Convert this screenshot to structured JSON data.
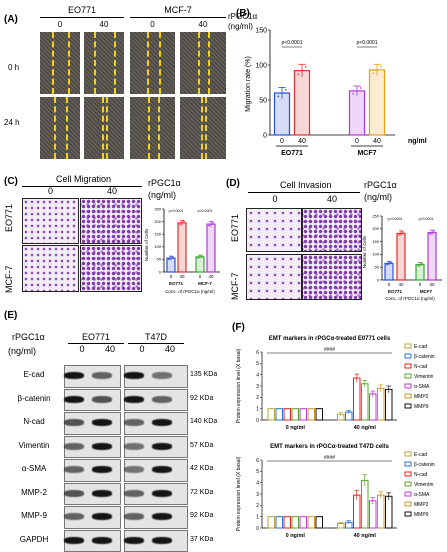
{
  "panels": {
    "A": {
      "label": "(A)",
      "lines": [
        "EO771",
        "MCF-7"
      ],
      "doses": [
        "0",
        "40",
        "0",
        "40"
      ],
      "times": [
        "0 h",
        "24 h"
      ],
      "agent": "rPGC1α",
      "unit": "(ng/ml)"
    },
    "B": {
      "label": "(B)",
      "ylabel": "Migration rate (%)",
      "xunit": "ng/ml",
      "pvals": [
        "p<0.0001",
        "p<0.0001"
      ],
      "doses": [
        "0",
        "40",
        "0",
        "40"
      ],
      "lines": [
        "EO771",
        "MCF7"
      ]
    },
    "C": {
      "label": "(C)",
      "title": "Cell Migration",
      "agent": "rPGC1α",
      "unit": "(ng/ml)",
      "doses": [
        "0",
        "40"
      ],
      "lines": [
        "EO771",
        "MCF-7"
      ],
      "chart": {
        "ylabel": "Number of Cells",
        "xlabel": "Conc. of rPGC1α (ng/ml)",
        "doses": [
          "0",
          "40",
          "0",
          "40"
        ],
        "groups": [
          "EO771",
          "MCF-7"
        ],
        "pvals": [
          "p<0.0001",
          "p<0.0001"
        ]
      }
    },
    "D": {
      "label": "(D)",
      "title": "Cell Invasion",
      "agent": "rPGC1α",
      "unit": "(ng/ml)",
      "doses": [
        "0",
        "40"
      ],
      "lines": [
        "EO771",
        "MCF-7"
      ],
      "chart": {
        "ylabel": "Number of Cells",
        "xlabel": "Conc. of rPGC1α (ng/ml)",
        "doses": [
          "0",
          "40",
          "0",
          "40"
        ],
        "groups": [
          "EO771",
          "MCF7"
        ],
        "pvals": [
          "p<0.0001",
          "p<0.0001"
        ]
      }
    },
    "E": {
      "label": "(E)",
      "agent": "rPGC1α",
      "unit": "(ng/ml)",
      "lines": [
        "EO771",
        "T47D"
      ],
      "doses": [
        "0",
        "40",
        "0",
        "40"
      ],
      "proteins": [
        {
          "name": "E-cad",
          "size": "135 KDa"
        },
        {
          "name": "β-catenin",
          "size": "92 KDa"
        },
        {
          "name": "N-cad",
          "size": "140 KDa"
        },
        {
          "name": "Vimentin",
          "size": "57 KDa"
        },
        {
          "name": "α-SMA",
          "size": "42 KDa"
        },
        {
          "name": "MMP-2",
          "size": "72 KDa"
        },
        {
          "name": "MMP-9",
          "size": "92 KDa"
        },
        {
          "name": "GAPDH",
          "size": "37 KDa"
        }
      ]
    },
    "F": {
      "label": "(F)",
      "legend": [
        "E-cad",
        "β-catenin",
        "N-cad",
        "Vimentin",
        "α-SMA",
        "MMP2",
        "MMP9"
      ],
      "colors": [
        "#b8a23a",
        "#2c6fd6",
        "#e0211b",
        "#5aa02c",
        "#c13bd6",
        "#c99527",
        "#111111"
      ]
    }
  },
  "chart_data": [
    {
      "type": "bar",
      "title": "",
      "ylabel": "Migration rate (%)",
      "xlabel": "ng/ml",
      "categories": [
        "EO771 0",
        "EO771 40",
        "MCF7 0",
        "MCF7 40"
      ],
      "values": [
        60,
        92,
        63,
        93
      ],
      "errors": [
        8,
        9,
        7,
        8
      ],
      "ylim": [
        0,
        150
      ],
      "yticks": [
        "0",
        "50",
        "100",
        "150"
      ],
      "colors": [
        "#2b4fd8",
        "#e23030",
        "#b03ad6",
        "#e0a21c"
      ]
    },
    {
      "type": "bar",
      "title": "",
      "ylabel": "Number of Cells",
      "xlabel": "Conc. of rPGC1α (ng/ml)",
      "categories": [
        "EO771 0",
        "EO771 40",
        "MCF-7 0",
        "MCF-7 40"
      ],
      "values": [
        55,
        195,
        60,
        190
      ],
      "errors": [
        8,
        10,
        7,
        10
      ],
      "ylim": [
        0,
        250
      ],
      "yticks": [
        "0",
        "50",
        "100",
        "150",
        "200",
        "250"
      ],
      "colors": [
        "#2b4fd8",
        "#e23030",
        "#3aa832",
        "#b03ad6"
      ]
    },
    {
      "type": "bar",
      "title": "",
      "ylabel": "Number of Cells",
      "xlabel": "Conc. of rPGC1α (ng/ml)",
      "categories": [
        "EO771 0",
        "EO771 40",
        "MCF7 0",
        "MCF7 40"
      ],
      "values": [
        65,
        182,
        60,
        185
      ],
      "errors": [
        8,
        10,
        8,
        10
      ],
      "ylim": [
        0,
        250
      ],
      "yticks": [
        "0",
        "50",
        "100",
        "150",
        "200",
        "250"
      ],
      "colors": [
        "#2b4fd8",
        "#e23030",
        "#3aa832",
        "#b03ad6"
      ]
    },
    {
      "type": "bar",
      "title": "EMT markers in rPGCα-treated E0771 cells",
      "ylabel": "Protein expression level (X basal)",
      "groups": [
        "0 ng/ml",
        "40 ng/ml"
      ],
      "series": [
        {
          "name": "E-cad",
          "values": [
            1.0,
            0.5
          ],
          "errors": [
            0.05,
            0.15
          ]
        },
        {
          "name": "β-catenin",
          "values": [
            1.0,
            0.7
          ],
          "errors": [
            0.05,
            0.15
          ]
        },
        {
          "name": "N-cad",
          "values": [
            1.0,
            3.7
          ],
          "errors": [
            0.05,
            0.35
          ]
        },
        {
          "name": "Vimentin",
          "values": [
            1.0,
            3.2
          ],
          "errors": [
            0.05,
            0.3
          ]
        },
        {
          "name": "α-SMA",
          "values": [
            1.0,
            2.3
          ],
          "errors": [
            0.05,
            0.25
          ]
        },
        {
          "name": "MMP2",
          "values": [
            1.0,
            2.8
          ],
          "errors": [
            0.05,
            0.3
          ]
        },
        {
          "name": "MMP9",
          "values": [
            1.0,
            2.7
          ],
          "errors": [
            0.05,
            0.3
          ]
        }
      ],
      "ylim": [
        0,
        6
      ],
      "yticks": [
        "0",
        "1",
        "2",
        "3",
        "4",
        "5",
        "6"
      ],
      "significance": "####"
    },
    {
      "type": "bar",
      "title": "EMT markers in rPGCα-treated T47D cells",
      "ylabel": "Protein expression level (X basal)",
      "groups": [
        "0 ng/ml",
        "40 ng/ml"
      ],
      "series": [
        {
          "name": "E-cad",
          "values": [
            1.0,
            0.4
          ],
          "errors": [
            0.05,
            0.1
          ]
        },
        {
          "name": "β-catenin",
          "values": [
            1.0,
            0.5
          ],
          "errors": [
            0.05,
            0.15
          ]
        },
        {
          "name": "N-cad",
          "values": [
            1.0,
            2.9
          ],
          "errors": [
            0.05,
            0.4
          ]
        },
        {
          "name": "Vimentin",
          "values": [
            1.0,
            4.2
          ],
          "errors": [
            0.05,
            0.5
          ]
        },
        {
          "name": "α-SMA",
          "values": [
            1.0,
            2.4
          ],
          "errors": [
            0.05,
            0.3
          ]
        },
        {
          "name": "MMP2",
          "values": [
            1.0,
            2.9
          ],
          "errors": [
            0.05,
            0.3
          ]
        },
        {
          "name": "MMP9",
          "values": [
            1.0,
            2.8
          ],
          "errors": [
            0.05,
            0.3
          ]
        }
      ],
      "ylim": [
        0,
        6
      ],
      "yticks": [
        "0",
        "1",
        "2",
        "3",
        "4",
        "5",
        "6"
      ],
      "significance": "####"
    }
  ]
}
